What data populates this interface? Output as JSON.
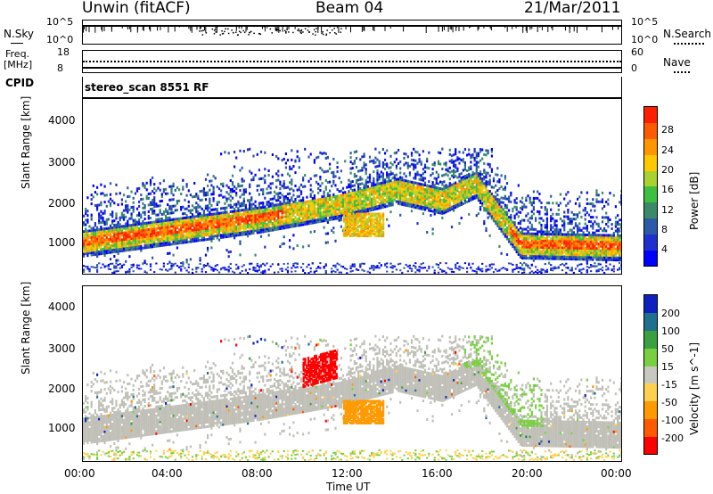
{
  "header": {
    "station": "Unwin (fitACF)",
    "beam": "Beam 04",
    "date": "21/Mar/2011"
  },
  "strips": {
    "nsky_label": "N.Sky",
    "nsky_ticks": [
      "10^5",
      "10^0"
    ],
    "nsearch_label": "N.Search",
    "nsearch_ticks": [
      "10^5",
      "10^0"
    ],
    "freq_label": "Freq.",
    "freq_unit": "[MHz]",
    "freq_ticks": [
      "18",
      "8"
    ],
    "nave_label": "Nave",
    "nave_ticks": [
      "60",
      "0"
    ],
    "cpid_label": "CPID",
    "cpid_text": "stereo_scan 8551 RF"
  },
  "axes": {
    "ylabel": "Slant Range [km]",
    "xlabel": "Time UT",
    "yticks": [
      "4000",
      "3000",
      "2000",
      "1000"
    ],
    "xticks": [
      "00:00",
      "04:00",
      "08:00",
      "12:00",
      "16:00",
      "20:00",
      "00:00"
    ]
  },
  "chart_data": [
    {
      "type": "heatmap",
      "name": "power",
      "xlabel": "Time UT",
      "ylabel": "Slant Range [km]",
      "xlim_hours": [
        0,
        24
      ],
      "ylim_km": [
        180,
        4500
      ],
      "colorbar": {
        "label": "Power [dB]",
        "ticks": [
          "28",
          "24",
          "20",
          "16",
          "12",
          "8",
          "4"
        ],
        "range": [
          0,
          32
        ],
        "colors": [
          "#0000ff",
          "#1f2fd0",
          "#2c5aa8",
          "#3a8a6a",
          "#3fbf3f",
          "#a8d230",
          "#ffc800",
          "#ff9600",
          "#ff5a00",
          "#ff1e00"
        ]
      },
      "features": [
        {
          "desc": "main echo band",
          "time_range": [
            0,
            24
          ],
          "range_km_start": 1000,
          "range_km_mid": 2000,
          "range_km_end": 900,
          "peak_power_db": 28
        }
      ]
    },
    {
      "type": "heatmap",
      "name": "velocity",
      "xlabel": "Time UT",
      "ylabel": "Slant Range [km]",
      "xlim_hours": [
        0,
        24
      ],
      "ylim_km": [
        180,
        4500
      ],
      "colorbar": {
        "label": "Velocity [m s^-1]",
        "ticks": [
          "200",
          "100",
          "50",
          "15",
          "-15",
          "-50",
          "-100",
          "-200"
        ],
        "range": [
          -250,
          250
        ],
        "colors": [
          "#ff0000",
          "#ff5a00",
          "#ff9a00",
          "#ffd050",
          "#c8c8c0",
          "#78d040",
          "#3aa040",
          "#1f6f8f",
          "#1020c0"
        ]
      }
    }
  ],
  "colors": {
    "ground_scatter": "#c0c0b8"
  }
}
